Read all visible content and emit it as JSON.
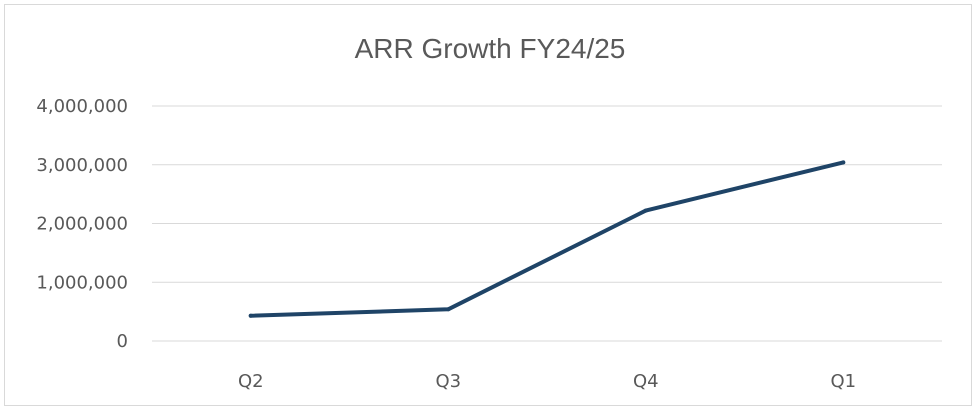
{
  "chart_data": {
    "type": "line",
    "title": "ARR Growth FY24/25",
    "categories": [
      "Q2",
      "Q3",
      "Q4",
      "Q1"
    ],
    "series": [
      {
        "values": [
          430000,
          540000,
          2220000,
          3040000
        ],
        "color": "#1f4467"
      }
    ],
    "ylim": [
      0,
      4000000
    ],
    "yticks": [
      0,
      1000000,
      2000000,
      3000000,
      4000000
    ],
    "ytick_labels": [
      "0",
      "1,000,000",
      "2,000,000",
      "3,000,000",
      "4,000,000"
    ],
    "grid": true,
    "legend": "none"
  }
}
